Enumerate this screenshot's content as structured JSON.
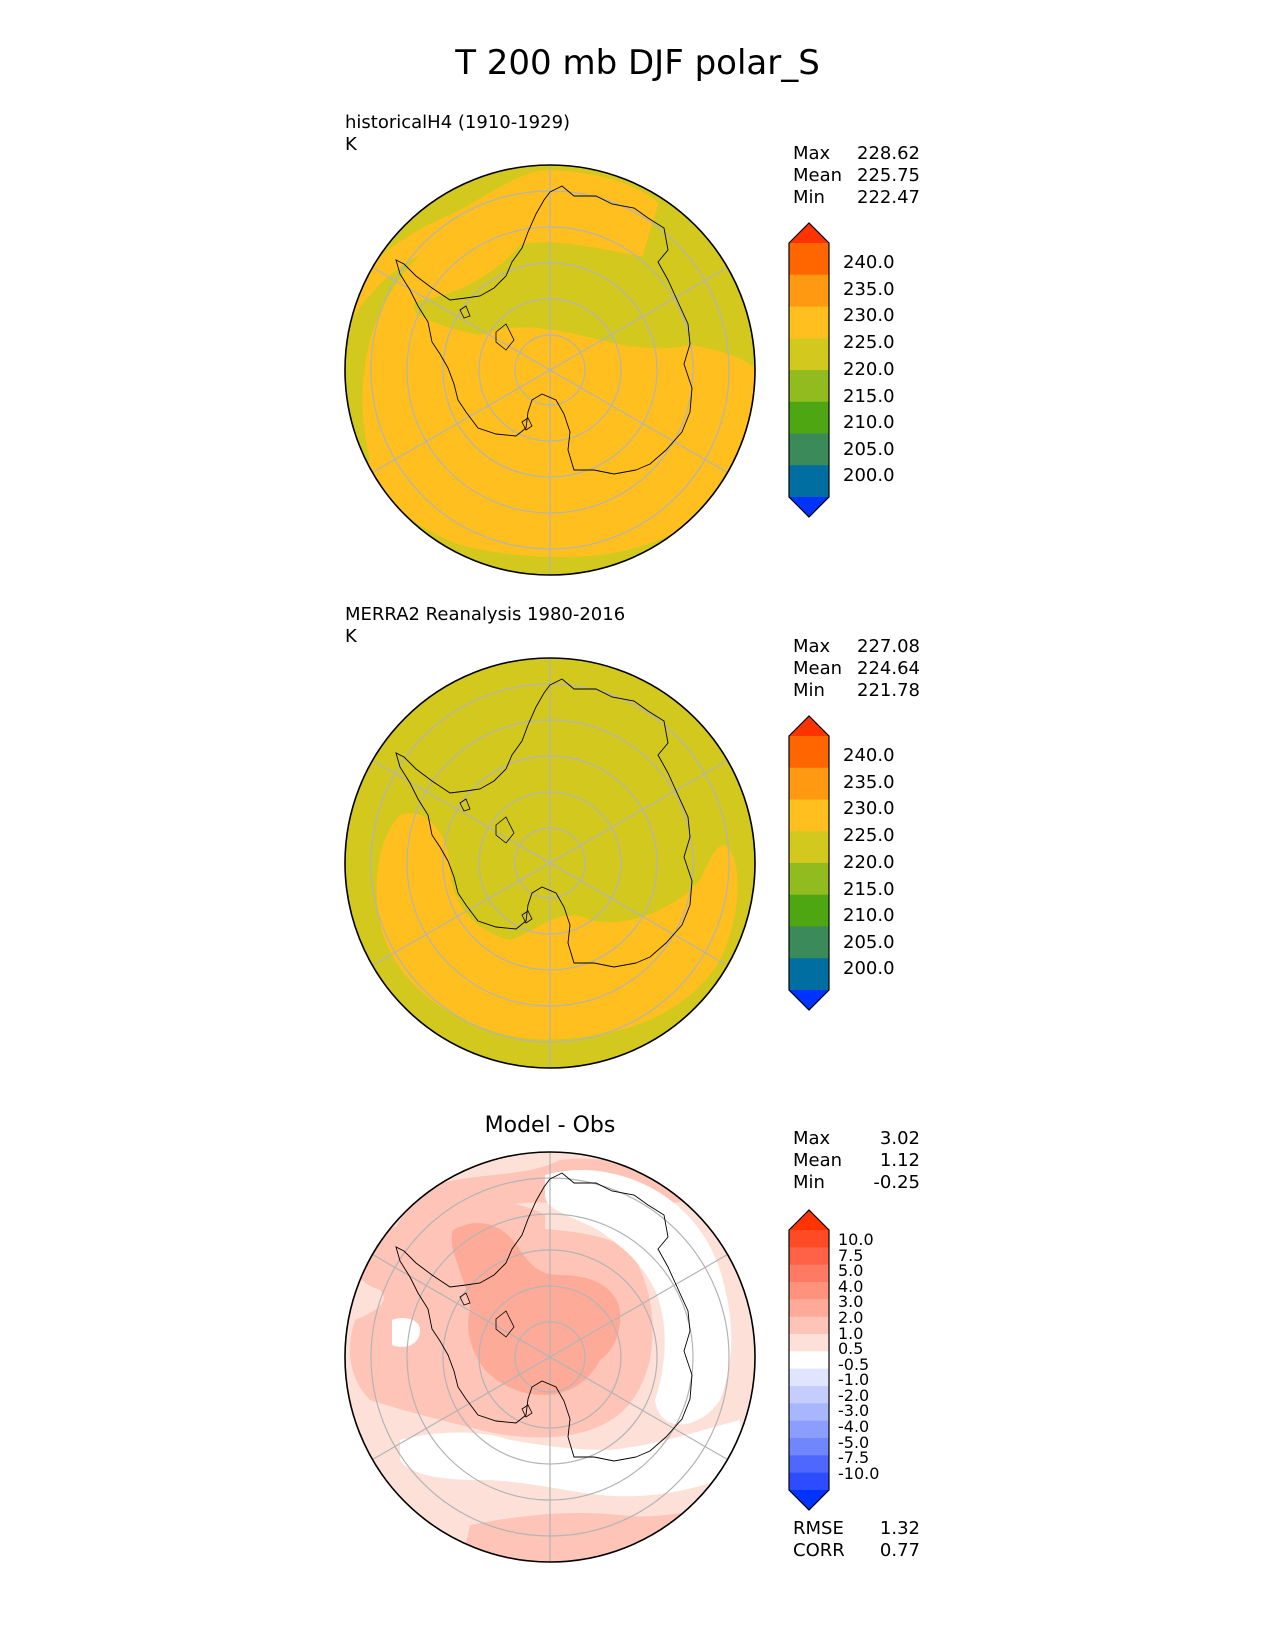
{
  "title": "T 200 mb DJF polar_S",
  "panels": [
    {
      "id": "test",
      "title": "historicalH4 (1910-1929)",
      "units": "K",
      "stats": [
        {
          "label": "Max",
          "value": "228.62"
        },
        {
          "label": "Mean",
          "value": "225.75"
        },
        {
          "label": "Min",
          "value": "222.47"
        }
      ],
      "colorbar": {
        "labels": [
          "240.0",
          "235.0",
          "230.0",
          "225.0",
          "220.0",
          "215.0",
          "210.0",
          "205.0",
          "200.0"
        ],
        "colors": [
          "#ff3300",
          "#ff6600",
          "#ff9911",
          "#ffbf1f",
          "#d2c81e",
          "#91bb1f",
          "#4fa613",
          "#3a8a5a",
          "#006ea0",
          "#0033ff"
        ]
      },
      "field": {
        "background": "#d2c81e",
        "region_color": "#ffbf1f",
        "region_level": "225-230",
        "background_level": "220-225"
      }
    },
    {
      "id": "reference",
      "title": "MERRA2 Reanalysis 1980-2016",
      "units": "K",
      "stats": [
        {
          "label": "Max",
          "value": "227.08"
        },
        {
          "label": "Mean",
          "value": "224.64"
        },
        {
          "label": "Min",
          "value": "221.78"
        }
      ],
      "colorbar": {
        "labels": [
          "240.0",
          "235.0",
          "230.0",
          "225.0",
          "220.0",
          "215.0",
          "210.0",
          "205.0",
          "200.0"
        ],
        "colors": [
          "#ff3300",
          "#ff6600",
          "#ff9911",
          "#ffbf1f",
          "#d2c81e",
          "#91bb1f",
          "#4fa613",
          "#3a8a5a",
          "#006ea0",
          "#0033ff"
        ]
      },
      "field": {
        "background": "#d2c81e",
        "region_color": "#ffbf1f",
        "region_level": "225-230",
        "background_level": "220-225"
      }
    },
    {
      "id": "diff",
      "title": "Model - Obs",
      "stats": [
        {
          "label": "Max",
          "value": "3.02"
        },
        {
          "label": "Mean",
          "value": "1.12"
        },
        {
          "label": "Min",
          "value": "-0.25"
        }
      ],
      "colorbar": {
        "labels": [
          "10.0",
          "7.5",
          "5.0",
          "4.0",
          "3.0",
          "2.0",
          "1.0",
          "0.5",
          "-0.5",
          "-1.0",
          "-2.0",
          "-3.0",
          "-4.0",
          "-5.0",
          "-7.5",
          "-10.0"
        ],
        "colors": [
          "#ff3300",
          "#ff4a26",
          "#ff6246",
          "#ff7a62",
          "#fd937c",
          "#fdab98",
          "#fdc4b7",
          "#fde1d8",
          "#ffffff",
          "#e0e4fd",
          "#c4cdfd",
          "#a8b6fd",
          "#8c9efd",
          "#7086fd",
          "#4e68ff",
          "#2d4bff",
          "#0033ff"
        ]
      },
      "field": {
        "background": "#fde1d8",
        "level1_color": "#fdc4b7",
        "level2_color": "#fdab98",
        "zero_color": "#ffffff"
      },
      "metrics": [
        {
          "label": "RMSE",
          "value": "1.32"
        },
        {
          "label": "CORR",
          "value": "0.77"
        }
      ]
    }
  ]
}
